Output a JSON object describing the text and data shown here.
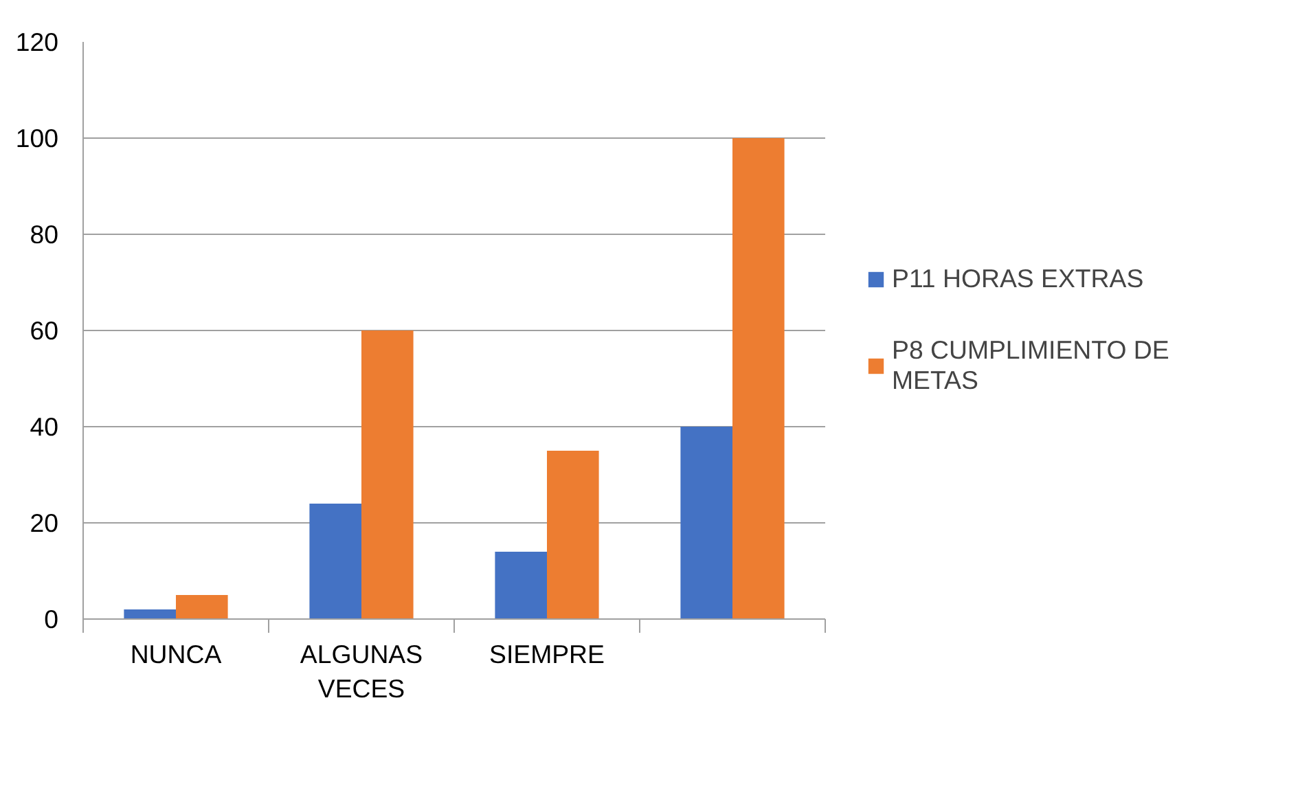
{
  "chart_data": {
    "type": "bar",
    "categories": [
      "NUNCA",
      "ALGUNAS VECES",
      "SIEMPRE",
      null
    ],
    "series": [
      {
        "name": "P11 HORAS EXTRAS",
        "color": "#4472c4",
        "values": [
          2,
          24,
          14,
          40
        ]
      },
      {
        "name": "P8 CUMPLIMIENTO DE METAS",
        "color": "#ed7d31",
        "values": [
          5,
          60,
          35,
          100
        ]
      }
    ],
    "ylim": [
      0,
      120
    ],
    "yticks": [
      0,
      20,
      40,
      60,
      80,
      100,
      120
    ],
    "grid": "y",
    "legend": "right"
  }
}
